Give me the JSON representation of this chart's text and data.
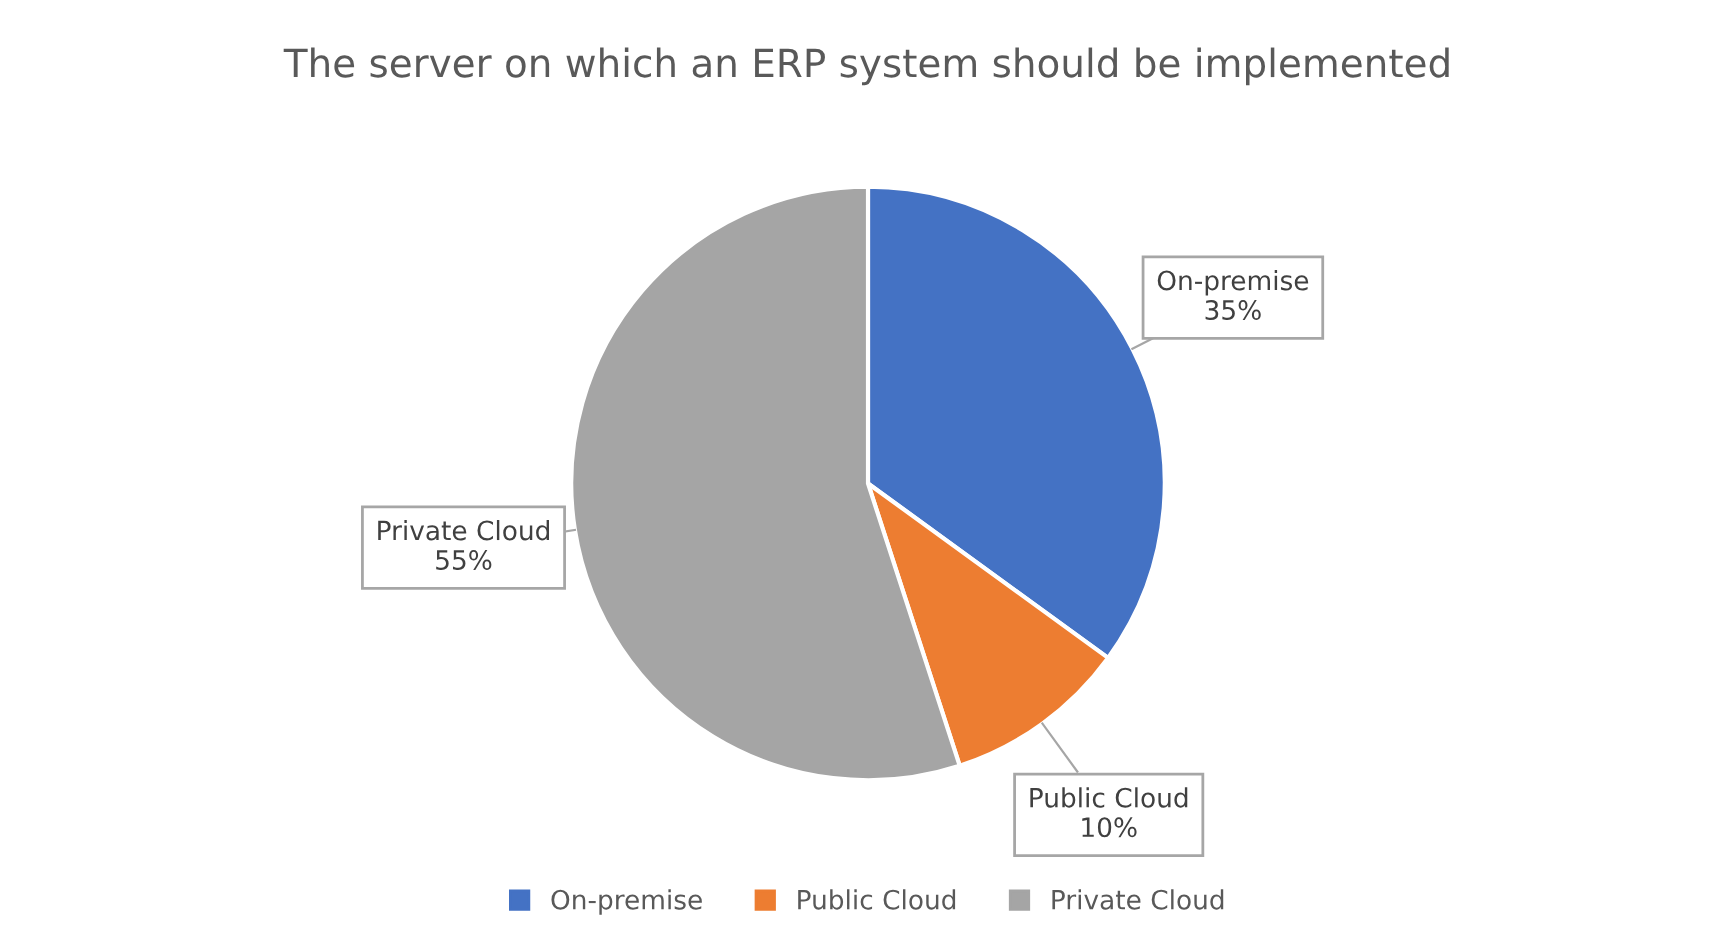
{
  "chart_data": {
    "type": "pie",
    "title": "The server on which an ERP system should be implemented",
    "categories": [
      "On-premise",
      "Public Cloud",
      "Private Cloud"
    ],
    "values": [
      35,
      10,
      55
    ],
    "value_labels": [
      "35%",
      "10%",
      "55%"
    ],
    "colors": [
      "#4472c4",
      "#ed7d31",
      "#a5a5a5"
    ],
    "legend": "bottom"
  }
}
